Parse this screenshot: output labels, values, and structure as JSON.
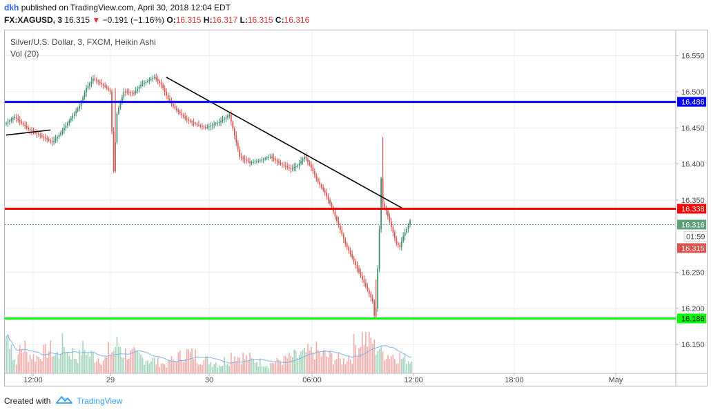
{
  "header": {
    "user": "dkh",
    "published_text": "published on TradingView.com, April 30, 2018 12:04 EDT",
    "symbol": "FX:XAGUSD, 3",
    "last": "16.315",
    "change": "−0.191 (−1.16%)",
    "o_label": "O:",
    "o_value": "16.315",
    "h_label": "H:",
    "h_value": "16.317",
    "l_label": "L:",
    "l_value": "16.315",
    "c_label": "C:",
    "c_value": "16.316"
  },
  "footer": {
    "created_with": "Created with",
    "brand": "TradingView"
  },
  "chart_data": {
    "type": "candlestick",
    "title": "Silver/U.S. Dollar, 3, FXCM, Heikin Ashi",
    "subtitle": "Vol (20)",
    "y_ticks": [
      "16.550",
      "16.500",
      "16.450",
      "16.400",
      "16.350",
      "16.250",
      "16.200",
      "16.150"
    ],
    "y_tick_values": [
      16.55,
      16.5,
      16.45,
      16.4,
      16.35,
      16.25,
      16.2,
      16.15
    ],
    "x_ticks": [
      "12:00",
      "29",
      "30",
      "06:00",
      "12:00",
      "18:00",
      "May"
    ],
    "ylim": [
      16.11,
      16.585
    ],
    "price_path": [
      [
        0,
        16.455
      ],
      [
        6,
        16.465
      ],
      [
        14,
        16.448
      ],
      [
        22,
        16.438
      ],
      [
        28,
        16.43
      ],
      [
        32,
        16.44
      ],
      [
        38,
        16.46
      ],
      [
        44,
        16.48
      ],
      [
        48,
        16.505
      ],
      [
        52,
        16.518
      ],
      [
        56,
        16.512
      ],
      [
        60,
        16.505
      ],
      [
        62,
        16.5
      ],
      [
        64,
        16.39
      ],
      [
        66,
        16.47
      ],
      [
        70,
        16.5
      ],
      [
        76,
        16.498
      ],
      [
        80,
        16.51
      ],
      [
        88,
        16.52
      ],
      [
        92,
        16.51
      ],
      [
        96,
        16.49
      ],
      [
        100,
        16.477
      ],
      [
        106,
        16.463
      ],
      [
        112,
        16.455
      ],
      [
        118,
        16.45
      ],
      [
        126,
        16.458
      ],
      [
        132,
        16.468
      ],
      [
        136,
        16.43
      ],
      [
        138,
        16.41
      ],
      [
        144,
        16.402
      ],
      [
        150,
        16.405
      ],
      [
        156,
        16.41
      ],
      [
        162,
        16.4
      ],
      [
        168,
        16.393
      ],
      [
        172,
        16.398
      ],
      [
        176,
        16.41
      ],
      [
        180,
        16.395
      ],
      [
        184,
        16.375
      ],
      [
        188,
        16.36
      ],
      [
        192,
        16.34
      ],
      [
        196,
        16.315
      ],
      [
        200,
        16.29
      ],
      [
        204,
        16.27
      ],
      [
        208,
        16.25
      ],
      [
        212,
        16.23
      ],
      [
        214,
        16.22
      ],
      [
        216,
        16.21
      ],
      [
        217,
        16.19
      ],
      [
        218,
        16.2
      ],
      [
        219,
        16.255
      ],
      [
        220,
        16.31
      ],
      [
        221,
        16.38
      ],
      [
        222,
        16.345
      ],
      [
        224,
        16.335
      ],
      [
        226,
        16.32
      ],
      [
        228,
        16.305
      ],
      [
        230,
        16.29
      ],
      [
        232,
        16.285
      ],
      [
        234,
        16.3
      ],
      [
        236,
        16.31
      ],
      [
        238,
        16.322
      ]
    ],
    "volume": [
      40,
      15,
      28,
      20,
      18,
      22,
      25,
      20,
      30,
      22,
      18,
      26,
      20,
      17,
      15,
      24,
      30,
      22,
      20,
      18,
      16,
      14,
      12,
      10,
      14,
      18,
      22,
      20,
      16,
      14,
      12,
      10,
      14,
      20,
      18,
      16,
      14,
      12,
      10,
      12,
      14,
      16,
      18,
      20,
      22,
      24,
      20,
      18,
      16,
      14,
      18,
      30,
      40,
      35,
      28,
      22,
      20,
      18,
      16,
      14
    ],
    "levels": [
      {
        "value": 16.486,
        "label": "16.486",
        "color": "#0000ff"
      },
      {
        "value": 16.338,
        "label": "16.338",
        "color": "#ff0000"
      },
      {
        "value": 16.186,
        "label": "16.186",
        "color": "#00ff00"
      }
    ],
    "price_markers": [
      {
        "value": 16.316,
        "label": "16.316",
        "color": "#5f9f7a"
      },
      {
        "value": 16.315,
        "label": "16.315",
        "color": "#d9534f"
      }
    ],
    "countdown": "01:59",
    "trendlines": [
      {
        "from": [
          94,
          16.52
        ],
        "to": [
          233,
          16.338
        ]
      },
      {
        "from": [
          0,
          16.44
        ],
        "to": [
          26,
          16.447
        ]
      }
    ],
    "colors": {
      "up": "#3d8f6d",
      "down": "#d9534f",
      "grid": "#e9ecf1",
      "vol_up": "#a8d5bf",
      "vol_down": "#f1b0ae",
      "vol_ma": "#7fb3e8"
    }
  }
}
